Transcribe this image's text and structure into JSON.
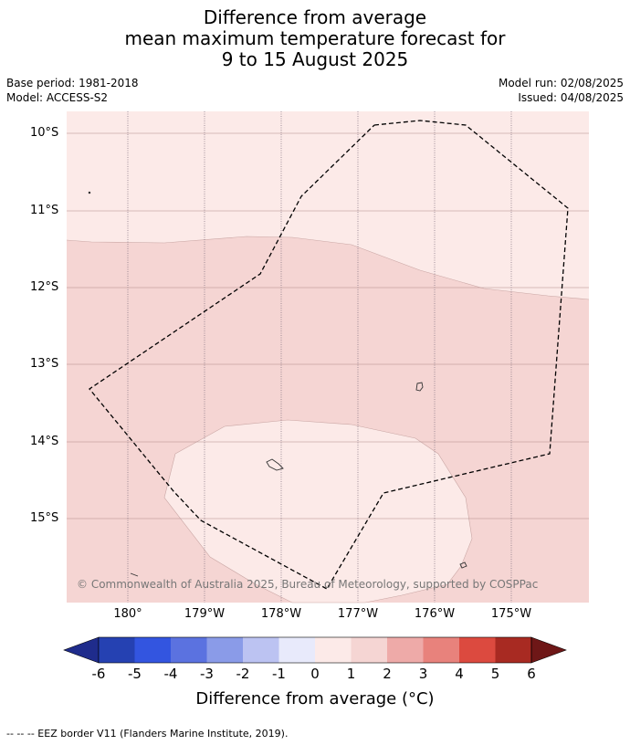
{
  "title": {
    "line1": "Difference from average",
    "line2": "mean maximum temperature forecast for",
    "line3": "9 to 15 August 2025"
  },
  "meta": {
    "base_period": "Base period: 1981-2018",
    "model": "Model: ACCESS-S2",
    "model_run": "Model run: 02/08/2025",
    "issued": "Issued: 04/08/2025"
  },
  "map": {
    "lat_labels": [
      "10°S",
      "11°S",
      "12°S",
      "13°S",
      "14°S",
      "15°S"
    ],
    "lon_labels": [
      "180°",
      "179°W",
      "178°W",
      "177°W",
      "176°W",
      "175°W"
    ],
    "copyright": "© Commonwealth of Australia 2025, Bureau of Meteorology, supported by COSPPac",
    "colors": {
      "band_0_1": "#fceae8",
      "band_1_2": "#f5d5d3",
      "gridline": "#b08a8a",
      "eez": "#000000"
    }
  },
  "colorbar": {
    "ticks": [
      "-6",
      "-5",
      "-4",
      "-3",
      "-2",
      "-1",
      "0",
      "1",
      "2",
      "3",
      "4",
      "5",
      "6"
    ],
    "colors": [
      "#1f2c8c",
      "#2541b2",
      "#3355e0",
      "#5b72e0",
      "#8a9be8",
      "#bcc3f2",
      "#e8eafb",
      "#fceae8",
      "#f5d5d3",
      "#eeaaa8",
      "#e8827c",
      "#dc4a3f",
      "#a82a22",
      "#6e1717"
    ],
    "label": "Difference from average (°C)"
  },
  "footer": "-- -- -- EEZ border V11 (Flanders Marine Institute, 2019)."
}
